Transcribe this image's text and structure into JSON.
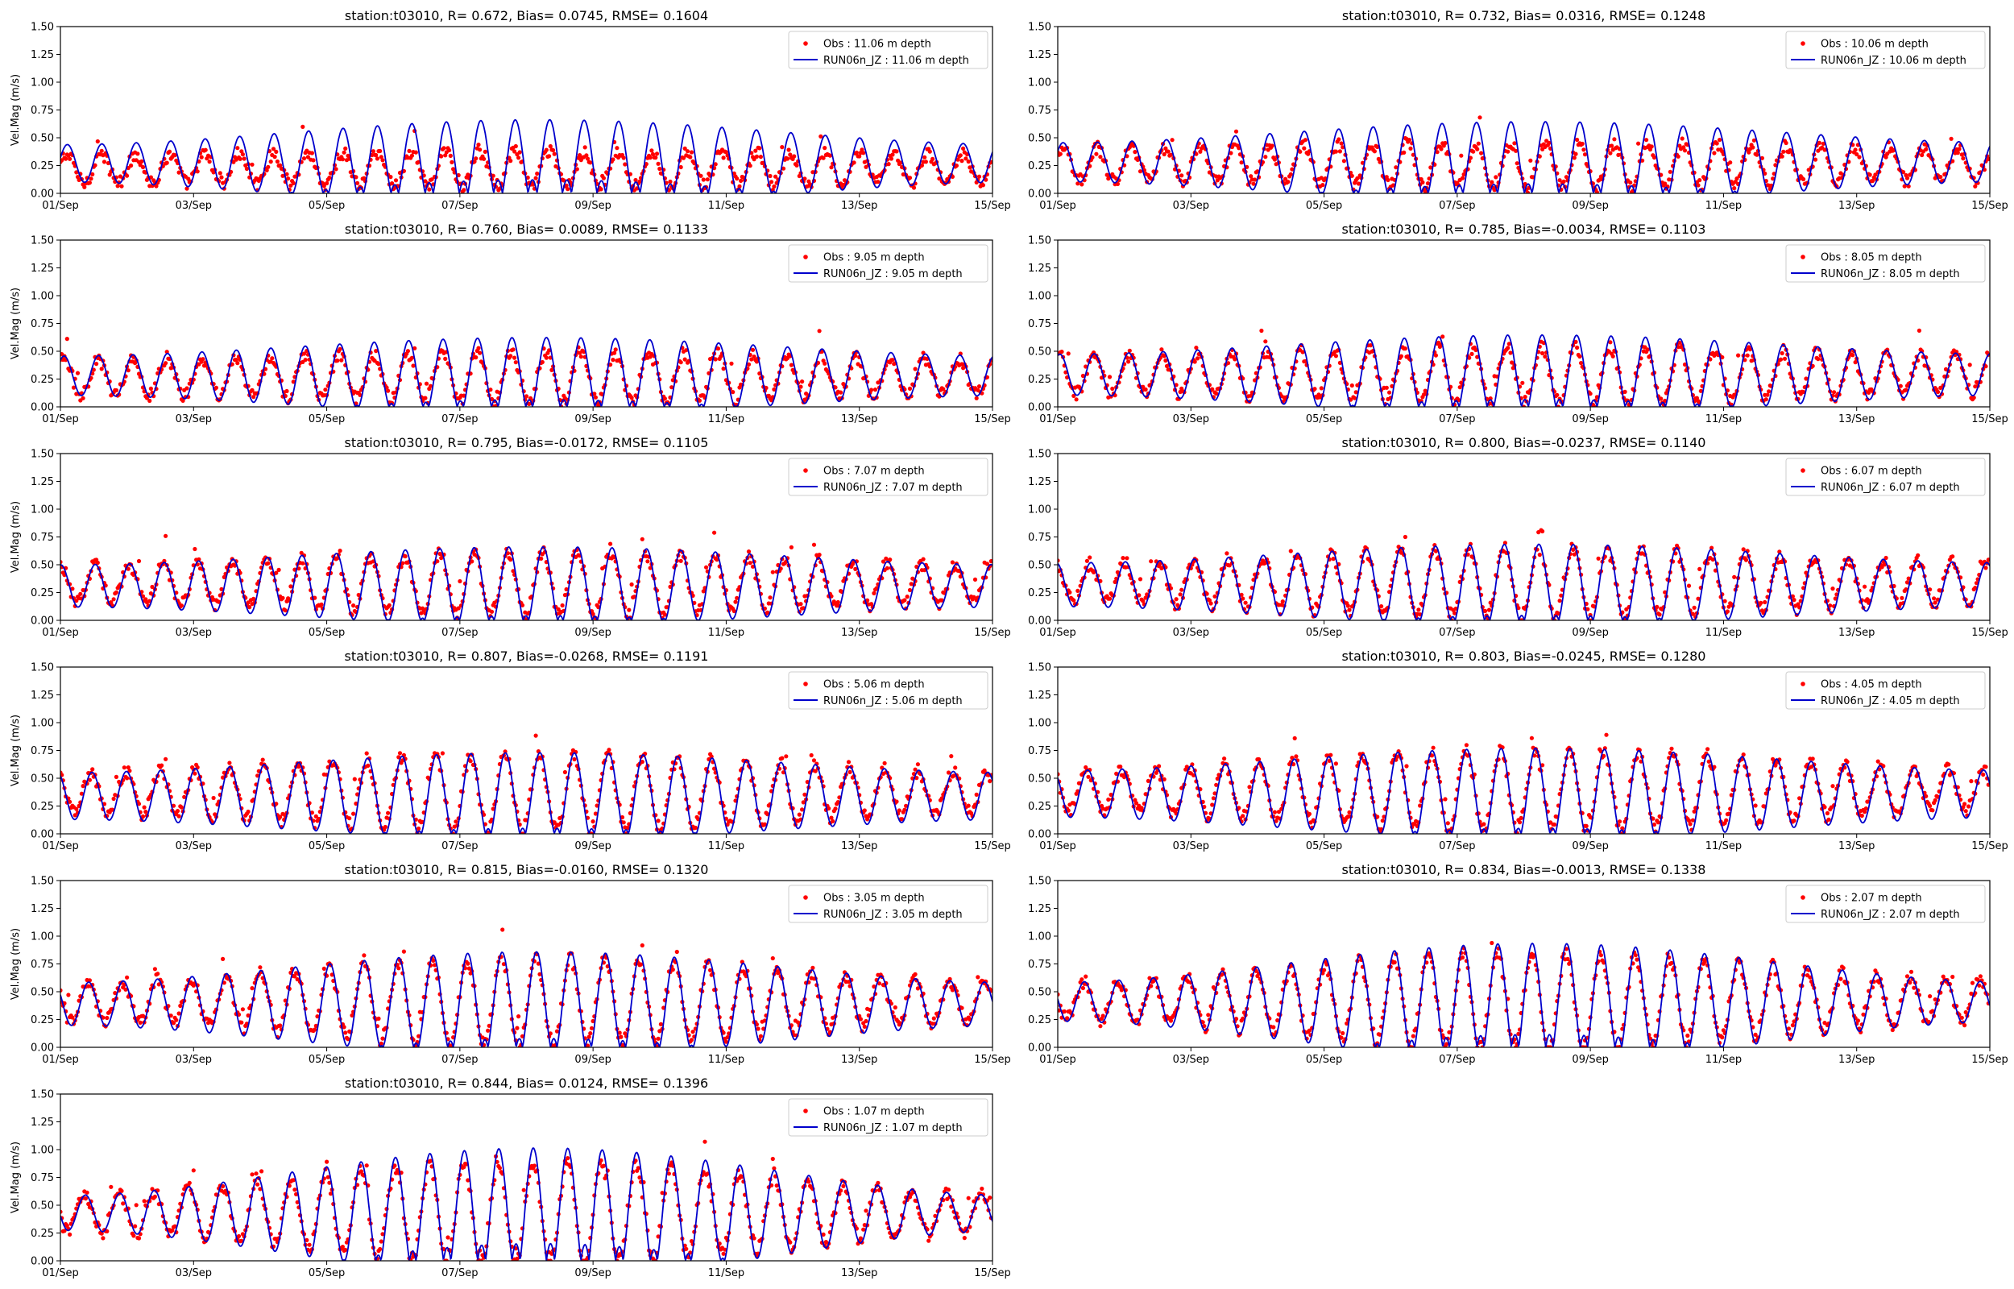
{
  "figure": {
    "colors": {
      "obs": "#ff0000",
      "model": "#0000cc"
    }
  },
  "chart_data": [
    {
      "type": "line",
      "title": "station:t03010, R= 0.672, Bias= 0.0745, RMSE= 0.1604",
      "ylabel": "Vel.Mag (m/s)",
      "ylim": [
        0,
        1.5
      ],
      "yticks": [
        "0.00",
        "0.25",
        "0.50",
        "0.75",
        "1.00",
        "1.25",
        "1.50"
      ],
      "xlim": [
        "2000-09-01",
        "2000-09-15"
      ],
      "xticks": [
        "01/Sep",
        "03/Sep",
        "05/Sep",
        "07/Sep",
        "09/Sep",
        "11/Sep",
        "13/Sep",
        "15/Sep"
      ],
      "legend_position": "upper right",
      "grid": false,
      "series": [
        {
          "name": "Obs : 11.06 m depth",
          "style": "markers",
          "mean": 0.22,
          "amplitude": 0.14,
          "peak_factor": 0.1
        },
        {
          "name": "RUN06n_JZ : 11.06 m depth",
          "style": "line",
          "mean": 0.27,
          "amplitude": 0.28,
          "peak_factor": 0.4
        }
      ]
    },
    {
      "type": "line",
      "title": "station:t03010, R= 0.732, Bias= 0.0316, RMSE= 0.1248",
      "ylabel": "",
      "ylim": [
        0,
        1.5
      ],
      "yticks": [
        "0.00",
        "0.25",
        "0.50",
        "0.75",
        "1.00",
        "1.25",
        "1.50"
      ],
      "xlim": [
        "2000-09-01",
        "2000-09-15"
      ],
      "xticks": [
        "01/Sep",
        "03/Sep",
        "05/Sep",
        "07/Sep",
        "09/Sep",
        "11/Sep",
        "13/Sep",
        "15/Sep"
      ],
      "legend_position": "upper right",
      "grid": false,
      "series": [
        {
          "name": "Obs : 10.06 m depth",
          "style": "markers",
          "mean": 0.26,
          "amplitude": 0.17,
          "peak_factor": 0.15
        },
        {
          "name": "RUN06n_JZ : 10.06 m depth",
          "style": "line",
          "mean": 0.28,
          "amplitude": 0.27,
          "peak_factor": 0.35
        }
      ]
    },
    {
      "type": "line",
      "title": "station:t03010, R= 0.760, Bias= 0.0089, RMSE= 0.1133",
      "ylabel": "Vel.Mag (m/s)",
      "ylim": [
        0,
        1.5
      ],
      "yticks": [
        "0.00",
        "0.25",
        "0.50",
        "0.75",
        "1.00",
        "1.25",
        "1.50"
      ],
      "xlim": [
        "2000-09-01",
        "2000-09-15"
      ],
      "xticks": [
        "01/Sep",
        "03/Sep",
        "05/Sep",
        "07/Sep",
        "09/Sep",
        "11/Sep",
        "13/Sep",
        "15/Sep"
      ],
      "legend_position": "upper right",
      "grid": false,
      "series": [
        {
          "name": "Obs : 9.05 m depth",
          "style": "markers",
          "mean": 0.27,
          "amplitude": 0.19,
          "peak_factor": 0.18
        },
        {
          "name": "RUN06n_JZ : 9.05 m depth",
          "style": "line",
          "mean": 0.28,
          "amplitude": 0.26,
          "peak_factor": 0.32
        }
      ]
    },
    {
      "type": "line",
      "title": "station:t03010, R= 0.785, Bias=-0.0034, RMSE= 0.1103",
      "ylabel": "",
      "ylim": [
        0,
        1.5
      ],
      "yticks": [
        "0.00",
        "0.25",
        "0.50",
        "0.75",
        "1.00",
        "1.25",
        "1.50"
      ],
      "xlim": [
        "2000-09-01",
        "2000-09-15"
      ],
      "xticks": [
        "01/Sep",
        "03/Sep",
        "05/Sep",
        "07/Sep",
        "09/Sep",
        "11/Sep",
        "13/Sep",
        "15/Sep"
      ],
      "legend_position": "upper right",
      "grid": false,
      "series": [
        {
          "name": "Obs : 8.05 m depth",
          "style": "markers",
          "mean": 0.29,
          "amplitude": 0.21,
          "peak_factor": 0.2
        },
        {
          "name": "RUN06n_JZ : 8.05 m depth",
          "style": "line",
          "mean": 0.29,
          "amplitude": 0.27,
          "peak_factor": 0.32
        }
      ]
    },
    {
      "type": "line",
      "title": "station:t03010, R= 0.795, Bias=-0.0172, RMSE= 0.1105",
      "ylabel": "Vel.Mag (m/s)",
      "ylim": [
        0,
        1.5
      ],
      "yticks": [
        "0.00",
        "0.25",
        "0.50",
        "0.75",
        "1.00",
        "1.25",
        "1.50"
      ],
      "xlim": [
        "2000-09-01",
        "2000-09-15"
      ],
      "xticks": [
        "01/Sep",
        "03/Sep",
        "05/Sep",
        "07/Sep",
        "09/Sep",
        "11/Sep",
        "13/Sep",
        "15/Sep"
      ],
      "legend_position": "upper right",
      "grid": false,
      "series": [
        {
          "name": "Obs : 7.07 m depth",
          "style": "markers",
          "mean": 0.33,
          "amplitude": 0.22,
          "peak_factor": 0.25
        },
        {
          "name": "RUN06n_JZ : 7.07 m depth",
          "style": "line",
          "mean": 0.31,
          "amplitude": 0.27,
          "peak_factor": 0.3
        }
      ]
    },
    {
      "type": "line",
      "title": "station:t03010, R= 0.800, Bias=-0.0237, RMSE= 0.1140",
      "ylabel": "",
      "ylim": [
        0,
        1.5
      ],
      "yticks": [
        "0.00",
        "0.25",
        "0.50",
        "0.75",
        "1.00",
        "1.25",
        "1.50"
      ],
      "xlim": [
        "2000-09-01",
        "2000-09-15"
      ],
      "xticks": [
        "01/Sep",
        "03/Sep",
        "05/Sep",
        "07/Sep",
        "09/Sep",
        "11/Sep",
        "13/Sep",
        "15/Sep"
      ],
      "legend_position": "upper right",
      "grid": false,
      "series": [
        {
          "name": "Obs : 6.07 m depth",
          "style": "markers",
          "mean": 0.34,
          "amplitude": 0.24,
          "peak_factor": 0.28
        },
        {
          "name": "RUN06n_JZ : 6.07 m depth",
          "style": "line",
          "mean": 0.32,
          "amplitude": 0.28,
          "peak_factor": 0.3
        }
      ]
    },
    {
      "type": "line",
      "title": "station:t03010, R= 0.807, Bias=-0.0268, RMSE= 0.1191",
      "ylabel": "Vel.Mag (m/s)",
      "ylim": [
        0,
        1.5
      ],
      "yticks": [
        "0.00",
        "0.25",
        "0.50",
        "0.75",
        "1.00",
        "1.25",
        "1.50"
      ],
      "xlim": [
        "2000-09-01",
        "2000-09-15"
      ],
      "xticks": [
        "01/Sep",
        "03/Sep",
        "05/Sep",
        "07/Sep",
        "09/Sep",
        "11/Sep",
        "13/Sep",
        "15/Sep"
      ],
      "legend_position": "upper right",
      "grid": false,
      "series": [
        {
          "name": "Obs : 5.06 m depth",
          "style": "markers",
          "mean": 0.37,
          "amplitude": 0.26,
          "peak_factor": 0.32
        },
        {
          "name": "RUN06n_JZ : 5.06 m depth",
          "style": "line",
          "mean": 0.34,
          "amplitude": 0.3,
          "peak_factor": 0.3
        }
      ]
    },
    {
      "type": "line",
      "title": "station:t03010, R= 0.803, Bias=-0.0245, RMSE= 0.1280",
      "ylabel": "",
      "ylim": [
        0,
        1.5
      ],
      "yticks": [
        "0.00",
        "0.25",
        "0.50",
        "0.75",
        "1.00",
        "1.25",
        "1.50"
      ],
      "xlim": [
        "2000-09-01",
        "2000-09-15"
      ],
      "xticks": [
        "01/Sep",
        "03/Sep",
        "05/Sep",
        "07/Sep",
        "09/Sep",
        "11/Sep",
        "13/Sep",
        "15/Sep"
      ],
      "legend_position": "upper right",
      "grid": false,
      "series": [
        {
          "name": "Obs : 4.05 m depth",
          "style": "markers",
          "mean": 0.39,
          "amplitude": 0.27,
          "peak_factor": 0.35
        },
        {
          "name": "RUN06n_JZ : 4.05 m depth",
          "style": "line",
          "mean": 0.36,
          "amplitude": 0.31,
          "peak_factor": 0.32
        }
      ]
    },
    {
      "type": "line",
      "title": "station:t03010, R= 0.815, Bias=-0.0160, RMSE= 0.1320",
      "ylabel": "Vel.Mag (m/s)",
      "ylim": [
        0,
        1.5
      ],
      "yticks": [
        "0.00",
        "0.25",
        "0.50",
        "0.75",
        "1.00",
        "1.25",
        "1.50"
      ],
      "xlim": [
        "2000-09-01",
        "2000-09-15"
      ],
      "xticks": [
        "01/Sep",
        "03/Sep",
        "05/Sep",
        "07/Sep",
        "09/Sep",
        "11/Sep",
        "13/Sep",
        "15/Sep"
      ],
      "legend_position": "upper right",
      "grid": false,
      "series": [
        {
          "name": "Obs : 3.05 m depth",
          "style": "markers",
          "mean": 0.41,
          "amplitude": 0.28,
          "peak_factor": 0.4
        },
        {
          "name": "RUN06n_JZ : 3.05 m depth",
          "style": "line",
          "mean": 0.39,
          "amplitude": 0.33,
          "peak_factor": 0.42
        }
      ]
    },
    {
      "type": "line",
      "title": "station:t03010, R= 0.834, Bias=-0.0013, RMSE= 0.1338",
      "ylabel": "",
      "ylim": [
        0,
        1.5
      ],
      "yticks": [
        "0.00",
        "0.25",
        "0.50",
        "0.75",
        "1.00",
        "1.25",
        "1.50"
      ],
      "xlim": [
        "2000-09-01",
        "2000-09-15"
      ],
      "xticks": [
        "01/Sep",
        "03/Sep",
        "05/Sep",
        "07/Sep",
        "09/Sep",
        "11/Sep",
        "13/Sep",
        "15/Sep"
      ],
      "legend_position": "upper right",
      "grid": false,
      "series": [
        {
          "name": "Obs : 2.07 m depth",
          "style": "markers",
          "mean": 0.42,
          "amplitude": 0.3,
          "peak_factor": 0.45
        },
        {
          "name": "RUN06n_JZ : 2.07 m depth",
          "style": "line",
          "mean": 0.41,
          "amplitude": 0.35,
          "peak_factor": 0.5
        }
      ]
    },
    {
      "type": "line",
      "title": "station:t03010, R= 0.844, Bias= 0.0124, RMSE= 0.1396",
      "ylabel": "Vel.Mag (m/s)",
      "ylim": [
        0,
        1.5
      ],
      "yticks": [
        "0.00",
        "0.25",
        "0.50",
        "0.75",
        "1.00",
        "1.25",
        "1.50"
      ],
      "xlim": [
        "2000-09-01",
        "2000-09-15"
      ],
      "xticks": [
        "01/Sep",
        "03/Sep",
        "05/Sep",
        "07/Sep",
        "09/Sep",
        "11/Sep",
        "13/Sep",
        "15/Sep"
      ],
      "legend_position": "upper right",
      "grid": false,
      "series": [
        {
          "name": "Obs : 1.07 m depth",
          "style": "markers",
          "mean": 0.43,
          "amplitude": 0.31,
          "peak_factor": 0.48
        },
        {
          "name": "RUN06n_JZ : 1.07 m depth",
          "style": "line",
          "mean": 0.43,
          "amplitude": 0.37,
          "peak_factor": 0.58
        }
      ]
    }
  ]
}
